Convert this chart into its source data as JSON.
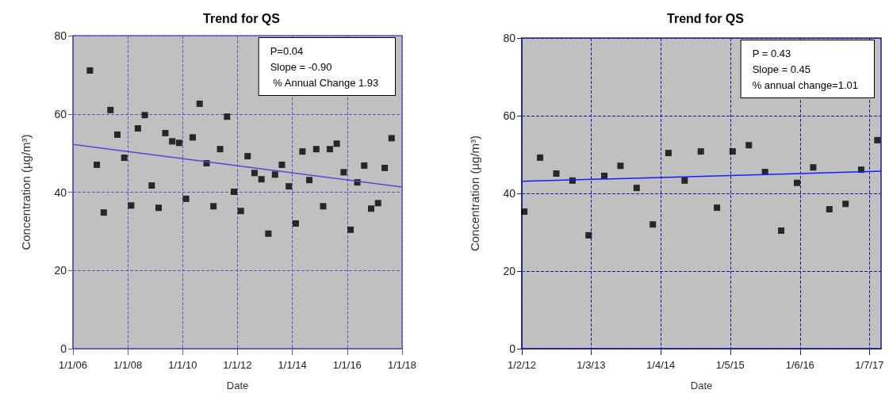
{
  "chart_data": [
    {
      "type": "scatter",
      "title": "Trend for QS",
      "xlabel": "Date",
      "ylabel": "Concentration (µg/m³)",
      "marker": "square",
      "grid": true,
      "line_style": "solid",
      "xlim": [
        "2006-01-01",
        "2018-01-01"
      ],
      "xticks": [
        {
          "value": "2006-01-01",
          "label": "1/1/06"
        },
        {
          "value": "2008-01-01",
          "label": "1/1/08"
        },
        {
          "value": "2010-01-01",
          "label": "1/1/10"
        },
        {
          "value": "2012-01-01",
          "label": "1/1/12"
        },
        {
          "value": "2014-01-01",
          "label": "1/1/14"
        },
        {
          "value": "2016-01-01",
          "label": "1/1/16"
        },
        {
          "value": "2018-01-01",
          "label": "1/1/18"
        }
      ],
      "ylim": [
        0,
        80
      ],
      "yticks": [
        0,
        20,
        40,
        60,
        80
      ],
      "annotations": [
        "P=0.04",
        "Slope = -0.90",
        " % Annual Change 1.93"
      ],
      "series": [
        {
          "color": "#000000",
          "x": [
            "2006-08-15",
            "2006-11-15",
            "2007-02-15",
            "2007-05-15",
            "2007-08-15",
            "2007-11-15",
            "2008-02-15",
            "2008-05-15",
            "2008-08-15",
            "2008-11-15",
            "2009-02-15",
            "2009-05-15",
            "2009-08-15",
            "2009-11-15",
            "2010-02-15",
            "2010-05-15",
            "2010-08-15",
            "2010-11-15",
            "2011-02-15",
            "2011-05-15",
            "2011-08-15",
            "2011-11-15",
            "2012-02-15",
            "2012-05-15",
            "2012-08-15",
            "2012-11-15",
            "2013-02-15",
            "2013-05-15",
            "2013-08-15",
            "2013-11-15",
            "2014-02-15",
            "2014-05-15",
            "2014-08-15",
            "2014-11-15",
            "2015-02-15",
            "2015-05-15",
            "2015-08-15",
            "2015-11-15",
            "2016-02-15",
            "2016-05-15",
            "2016-08-15",
            "2016-11-15",
            "2017-02-15",
            "2017-05-15",
            "2017-08-15"
          ],
          "values": [
            71.1,
            47,
            34.8,
            61,
            54.7,
            48.8,
            36.6,
            56.3,
            59.7,
            41.7,
            36,
            55.1,
            53,
            52.6,
            38.3,
            54,
            62.6,
            47.4,
            36.4,
            51,
            59.3,
            40.1,
            35.2,
            49.2,
            44.9,
            43.3,
            29.4,
            44.5,
            47,
            41.5,
            32,
            50.4,
            43.1,
            51,
            36.4,
            51,
            52.4,
            45.1,
            30.4,
            42.5,
            46.8,
            35.8,
            37.2,
            46.2,
            53.8
          ]
        },
        {
          "type": "line",
          "marker": "none",
          "color": "#4b4bd8",
          "x": [
            "2006-01-01",
            "2018-01-01"
          ],
          "values": [
            52.2,
            41.3
          ]
        }
      ]
    },
    {
      "type": "scatter",
      "title": "Trend for QS",
      "xlabel": "Date",
      "ylabel": "Concentration (µg/m³)",
      "marker": "square",
      "grid": true,
      "line_style": "solid",
      "xlim": [
        "2012-02-01",
        "2017-09-05"
      ],
      "xticks": [
        {
          "value": "2012-02-01",
          "label": "1/2/12"
        },
        {
          "value": "2013-03-01",
          "label": "1/3/13"
        },
        {
          "value": "2014-04-01",
          "label": "1/4/14"
        },
        {
          "value": "2015-05-01",
          "label": "1/5/15"
        },
        {
          "value": "2016-06-01",
          "label": "1/6/16"
        },
        {
          "value": "2017-07-01",
          "label": "1/7/17"
        }
      ],
      "ylim": [
        0,
        80
      ],
      "yticks": [
        0,
        20,
        40,
        60,
        80
      ],
      "annotations": [
        "P = 0.43",
        "Slope = 0.45",
        "% annual change=1.01"
      ],
      "series": [
        {
          "color": "#000000",
          "x": [
            "2012-02-15",
            "2012-05-15",
            "2012-08-15",
            "2012-11-15",
            "2013-02-15",
            "2013-05-15",
            "2013-08-15",
            "2013-11-15",
            "2014-02-15",
            "2014-05-15",
            "2014-08-15",
            "2014-11-15",
            "2015-02-15",
            "2015-05-15",
            "2015-08-15",
            "2015-11-15",
            "2016-02-15",
            "2016-05-15",
            "2016-08-15",
            "2016-11-15",
            "2017-02-15",
            "2017-05-15",
            "2017-08-15"
          ],
          "values": [
            35.3,
            49.2,
            45.1,
            43.3,
            29.2,
            44.5,
            47.1,
            41.4,
            32,
            50.4,
            43.3,
            50.8,
            36.3,
            50.8,
            52.4,
            45.5,
            30.4,
            42.7,
            46.7,
            35.9,
            37.3,
            46.1,
            53.7
          ]
        },
        {
          "type": "line",
          "marker": "none",
          "color": "#1a1aff",
          "x": [
            "2012-02-01",
            "2017-09-05"
          ],
          "values": [
            43.1,
            45.7
          ]
        }
      ]
    }
  ]
}
